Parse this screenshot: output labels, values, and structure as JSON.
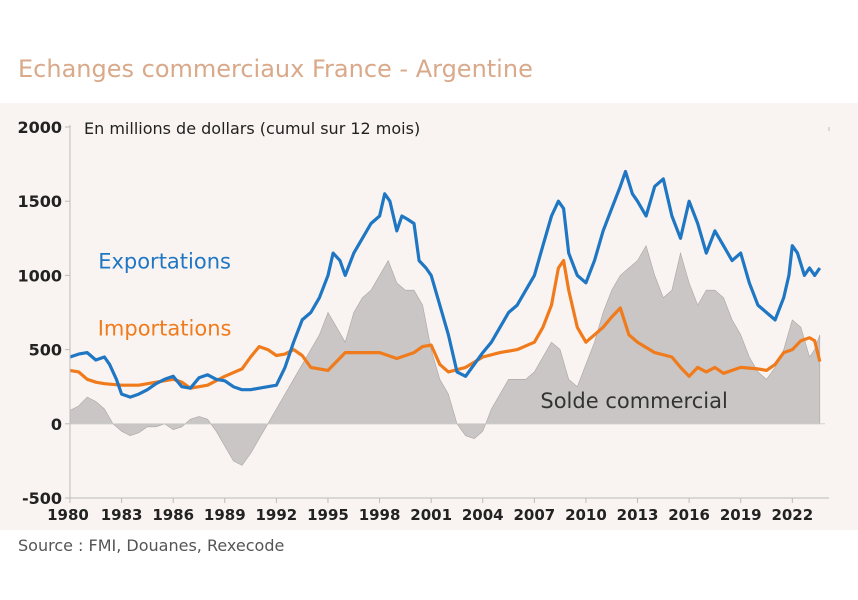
{
  "title": "Echanges commerciaux France - Argentine",
  "source": "Source : FMI, Douanes, Rexecode",
  "chart_data": {
    "type": "line",
    "subtitle": "En millions de dollars (cumul sur 12 mois)",
    "xlim": [
      1980,
      2023.9
    ],
    "ylim": [
      -500,
      2000
    ],
    "yticks": [
      -500,
      0,
      500,
      1000,
      1500,
      2000
    ],
    "xticks": [
      1980,
      1983,
      1986,
      1989,
      1992,
      1995,
      1998,
      2001,
      2004,
      2007,
      2010,
      2013,
      2016,
      2019,
      2022
    ],
    "grid": false,
    "colors": {
      "exports": "#1f77c4",
      "imports": "#f07b1c",
      "balance": "#c9c6c5"
    },
    "series": [
      {
        "name": "Exportations",
        "label_year": 1985.5,
        "label_value": 1100,
        "x": [
          1980,
          1980.5,
          1981,
          1981.5,
          1982,
          1982.3,
          1982.7,
          1983,
          1983.5,
          1984,
          1984.5,
          1985,
          1985.5,
          1986,
          1986.5,
          1987,
          1987.5,
          1988,
          1988.5,
          1989,
          1989.5,
          1990,
          1990.5,
          1991,
          1991.5,
          1992,
          1992.5,
          1993,
          1993.5,
          1994,
          1994.5,
          1995,
          1995.3,
          1995.7,
          1996,
          1996.5,
          1997,
          1997.5,
          1998,
          1998.3,
          1998.6,
          1999,
          1999.3,
          1999.6,
          2000,
          2000.3,
          2000.7,
          2001,
          2001.5,
          2002,
          2002.5,
          2003,
          2003.5,
          2004,
          2004.5,
          2005,
          2005.5,
          2006,
          2006.5,
          2007,
          2007.5,
          2008,
          2008.4,
          2008.7,
          2009,
          2009.5,
          2010,
          2010.5,
          2011,
          2011.5,
          2012,
          2012.3,
          2012.7,
          2013,
          2013.5,
          2014,
          2014.5,
          2015,
          2015.5,
          2016,
          2016.5,
          2017,
          2017.5,
          2018,
          2018.5,
          2019,
          2019.5,
          2020,
          2020.5,
          2021,
          2021.5,
          2021.8,
          2022,
          2022.3,
          2022.7,
          2023,
          2023.3,
          2023.6
        ],
        "values": [
          450,
          470,
          480,
          430,
          450,
          400,
          300,
          200,
          180,
          200,
          230,
          270,
          300,
          320,
          250,
          240,
          310,
          330,
          300,
          290,
          250,
          230,
          230,
          240,
          250,
          260,
          380,
          550,
          700,
          750,
          850,
          1000,
          1150,
          1100,
          1000,
          1150,
          1250,
          1350,
          1400,
          1550,
          1500,
          1300,
          1400,
          1380,
          1350,
          1100,
          1050,
          1000,
          800,
          600,
          350,
          320,
          400,
          480,
          550,
          650,
          750,
          800,
          900,
          1000,
          1200,
          1400,
          1500,
          1450,
          1150,
          1000,
          950,
          1100,
          1300,
          1450,
          1600,
          1700,
          1550,
          1500,
          1400,
          1600,
          1650,
          1400,
          1250,
          1500,
          1350,
          1150,
          1300,
          1200,
          1100,
          1150,
          950,
          800,
          750,
          700,
          850,
          1000,
          1200,
          1150,
          1000,
          1050,
          1000,
          1050
        ]
      },
      {
        "name": "Importations",
        "label_year": 1985.5,
        "label_value": 650,
        "x": [
          1980,
          1980.5,
          1981,
          1981.5,
          1982,
          1983,
          1984,
          1985,
          1986,
          1986.5,
          1987,
          1988,
          1989,
          1990,
          1990.5,
          1991,
          1991.5,
          1992,
          1992.5,
          1993,
          1993.5,
          1994,
          1995,
          1996,
          1997,
          1998,
          1999,
          2000,
          2000.5,
          2001,
          2001.5,
          2002,
          2003,
          2004,
          2005,
          2006,
          2007,
          2007.5,
          2008,
          2008.4,
          2008.7,
          2009,
          2009.5,
          2010,
          2010.5,
          2011,
          2011.5,
          2012,
          2012.5,
          2013,
          2014,
          2015,
          2015.5,
          2016,
          2016.5,
          2017,
          2017.5,
          2018,
          2019,
          2020,
          2020.5,
          2021,
          2021.5,
          2022,
          2022.5,
          2023,
          2023.3,
          2023.6
        ],
        "values": [
          360,
          350,
          300,
          280,
          270,
          260,
          260,
          280,
          300,
          280,
          240,
          260,
          320,
          370,
          450,
          520,
          500,
          460,
          470,
          500,
          460,
          380,
          360,
          480,
          480,
          480,
          440,
          480,
          520,
          530,
          400,
          350,
          380,
          450,
          480,
          500,
          550,
          650,
          800,
          1050,
          1100,
          900,
          650,
          550,
          600,
          650,
          720,
          780,
          600,
          550,
          480,
          450,
          380,
          320,
          380,
          350,
          380,
          340,
          380,
          370,
          360,
          400,
          480,
          500,
          560,
          580,
          560,
          420
        ]
      },
      {
        "name": "Solde commercial",
        "label_year": 2012.8,
        "label_value": 160,
        "x": [
          1980,
          1980.5,
          1981,
          1981.5,
          1982,
          1982.5,
          1983,
          1983.5,
          1984,
          1984.5,
          1985,
          1985.5,
          1986,
          1986.5,
          1987,
          1987.5,
          1988,
          1988.5,
          1989,
          1989.5,
          1990,
          1990.5,
          1991,
          1991.5,
          1992,
          1992.5,
          1993,
          1993.5,
          1994,
          1994.5,
          1995,
          1995.5,
          1996,
          1996.5,
          1997,
          1997.5,
          1998,
          1998.5,
          1999,
          1999.5,
          2000,
          2000.5,
          2001,
          2001.5,
          2002,
          2002.5,
          2003,
          2003.5,
          2004,
          2004.5,
          2005,
          2005.5,
          2006,
          2006.5,
          2007,
          2007.5,
          2008,
          2008.5,
          2009,
          2009.5,
          2010,
          2010.5,
          2011,
          2011.5,
          2012,
          2012.5,
          2013,
          2013.5,
          2014,
          2014.5,
          2015,
          2015.5,
          2016,
          2016.5,
          2017,
          2017.5,
          2018,
          2018.5,
          2019,
          2019.5,
          2020,
          2020.5,
          2021,
          2021.5,
          2022,
          2022.5,
          2023,
          2023.3,
          2023.6
        ],
        "values": [
          90,
          120,
          180,
          150,
          100,
          0,
          -50,
          -80,
          -60,
          -20,
          -20,
          0,
          -40,
          -20,
          30,
          50,
          30,
          -50,
          -150,
          -250,
          -280,
          -200,
          -100,
          0,
          100,
          200,
          300,
          400,
          500,
          600,
          750,
          650,
          550,
          750,
          850,
          900,
          1000,
          1100,
          950,
          900,
          900,
          800,
          500,
          300,
          200,
          0,
          -80,
          -100,
          -50,
          100,
          200,
          300,
          300,
          300,
          350,
          450,
          550,
          500,
          300,
          250,
          400,
          550,
          750,
          900,
          1000,
          1050,
          1100,
          1200,
          1000,
          850,
          900,
          1150,
          950,
          800,
          900,
          900,
          850,
          700,
          600,
          450,
          350,
          300,
          380,
          500,
          700,
          650,
          450,
          500,
          600
        ]
      }
    ]
  }
}
